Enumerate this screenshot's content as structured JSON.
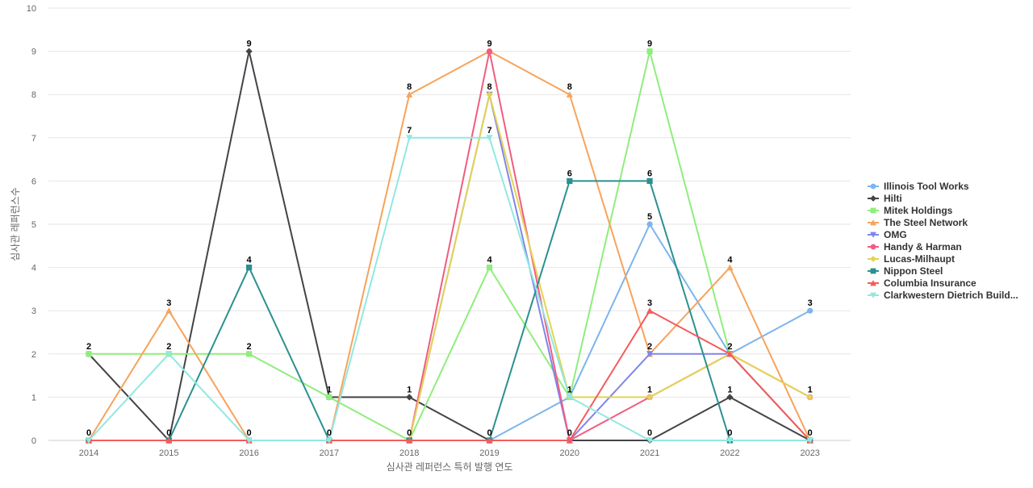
{
  "chart_data": {
    "type": "line",
    "title": "",
    "xlabel": "심사관 레퍼런스 특허 발행 연도",
    "ylabel": "심사관 레퍼런스수",
    "ylim": [
      0,
      10
    ],
    "yticks": [
      0,
      1,
      2,
      3,
      4,
      5,
      6,
      7,
      8,
      9,
      10
    ],
    "categories": [
      "2014",
      "2015",
      "2016",
      "2017",
      "2018",
      "2019",
      "2020",
      "2021",
      "2022",
      "2023"
    ],
    "legend_position": "right",
    "grid": true,
    "series": [
      {
        "name": "Illinois Tool Works",
        "color": "#7cb5ec",
        "marker": "circle",
        "values": [
          0,
          0,
          0,
          0,
          0,
          0,
          1,
          5,
          2,
          3
        ]
      },
      {
        "name": "Hilti",
        "color": "#434348",
        "marker": "diamond",
        "values": [
          2,
          0,
          9,
          1,
          1,
          0,
          0,
          0,
          1,
          0
        ]
      },
      {
        "name": "Mitek Holdings",
        "color": "#90ed7d",
        "marker": "square",
        "values": [
          2,
          2,
          2,
          1,
          0,
          4,
          1,
          9,
          2,
          0
        ]
      },
      {
        "name": "The Steel Network",
        "color": "#f7a35c",
        "marker": "triangle",
        "values": [
          0,
          3,
          0,
          0,
          8,
          9,
          8,
          2,
          4,
          0
        ]
      },
      {
        "name": "OMG",
        "color": "#8085e9",
        "marker": "triangle-down",
        "values": [
          0,
          0,
          0,
          0,
          0,
          8,
          0,
          2,
          2,
          0
        ]
      },
      {
        "name": "Handy & Harman",
        "color": "#f15c80",
        "marker": "circle",
        "values": [
          0,
          0,
          0,
          0,
          0,
          9,
          0,
          1,
          2,
          1
        ]
      },
      {
        "name": "Lucas-Milhaupt",
        "color": "#e4d354",
        "marker": "diamond",
        "values": [
          0,
          0,
          0,
          0,
          0,
          8,
          1,
          1,
          2,
          1
        ]
      },
      {
        "name": "Nippon Steel",
        "color": "#2b908f",
        "marker": "square",
        "values": [
          0,
          0,
          4,
          0,
          0,
          0,
          6,
          6,
          0,
          0
        ]
      },
      {
        "name": "Columbia Insurance",
        "color": "#f45b5b",
        "marker": "triangle",
        "values": [
          0,
          0,
          0,
          0,
          0,
          0,
          0,
          3,
          2,
          0
        ]
      },
      {
        "name": "Clarkwestern Dietrich Build...",
        "color": "#91e8e1",
        "marker": "triangle-down",
        "values": [
          0,
          2,
          0,
          0,
          7,
          7,
          1,
          0,
          0,
          0
        ]
      }
    ],
    "data_labels": [
      {
        "category": "2014",
        "value": 2,
        "text": "2"
      },
      {
        "category": "2014",
        "value": 0,
        "text": "0"
      },
      {
        "category": "2015",
        "value": 3,
        "text": "3"
      },
      {
        "category": "2015",
        "value": 2,
        "text": "2"
      },
      {
        "category": "2015",
        "value": 0,
        "text": "0"
      },
      {
        "category": "2016",
        "value": 9,
        "text": "9"
      },
      {
        "category": "2016",
        "value": 4,
        "text": "4"
      },
      {
        "category": "2016",
        "value": 2,
        "text": "2"
      },
      {
        "category": "2016",
        "value": 0,
        "text": "0"
      },
      {
        "category": "2017",
        "value": 1,
        "text": "1"
      },
      {
        "category": "2017",
        "value": 0,
        "text": "0"
      },
      {
        "category": "2018",
        "value": 8,
        "text": "8"
      },
      {
        "category": "2018",
        "value": 7,
        "text": "7"
      },
      {
        "category": "2018",
        "value": 1,
        "text": "1"
      },
      {
        "category": "2018",
        "value": 0,
        "text": "0"
      },
      {
        "category": "2019",
        "value": 9,
        "text": "9"
      },
      {
        "category": "2019",
        "value": 8,
        "text": "8"
      },
      {
        "category": "2019",
        "value": 7,
        "text": "7"
      },
      {
        "category": "2019",
        "value": 4,
        "text": "4"
      },
      {
        "category": "2019",
        "value": 0,
        "text": "0"
      },
      {
        "category": "2020",
        "value": 8,
        "text": "8"
      },
      {
        "category": "2020",
        "value": 6,
        "text": "6"
      },
      {
        "category": "2020",
        "value": 1,
        "text": "1"
      },
      {
        "category": "2020",
        "value": 0,
        "text": "0"
      },
      {
        "category": "2021",
        "value": 9,
        "text": "9"
      },
      {
        "category": "2021",
        "value": 6,
        "text": "6"
      },
      {
        "category": "2021",
        "value": 5,
        "text": "5"
      },
      {
        "category": "2021",
        "value": 3,
        "text": "3"
      },
      {
        "category": "2021",
        "value": 2,
        "text": "2"
      },
      {
        "category": "2021",
        "value": 1,
        "text": "1"
      },
      {
        "category": "2021",
        "value": 0,
        "text": "0"
      },
      {
        "category": "2022",
        "value": 4,
        "text": "4"
      },
      {
        "category": "2022",
        "value": 2,
        "text": "2"
      },
      {
        "category": "2022",
        "value": 1,
        "text": "1"
      },
      {
        "category": "2022",
        "value": 0,
        "text": "0"
      },
      {
        "category": "2023",
        "value": 3,
        "text": "3"
      },
      {
        "category": "2023",
        "value": 1,
        "text": "1"
      },
      {
        "category": "2023",
        "value": 0,
        "text": "0"
      }
    ]
  }
}
